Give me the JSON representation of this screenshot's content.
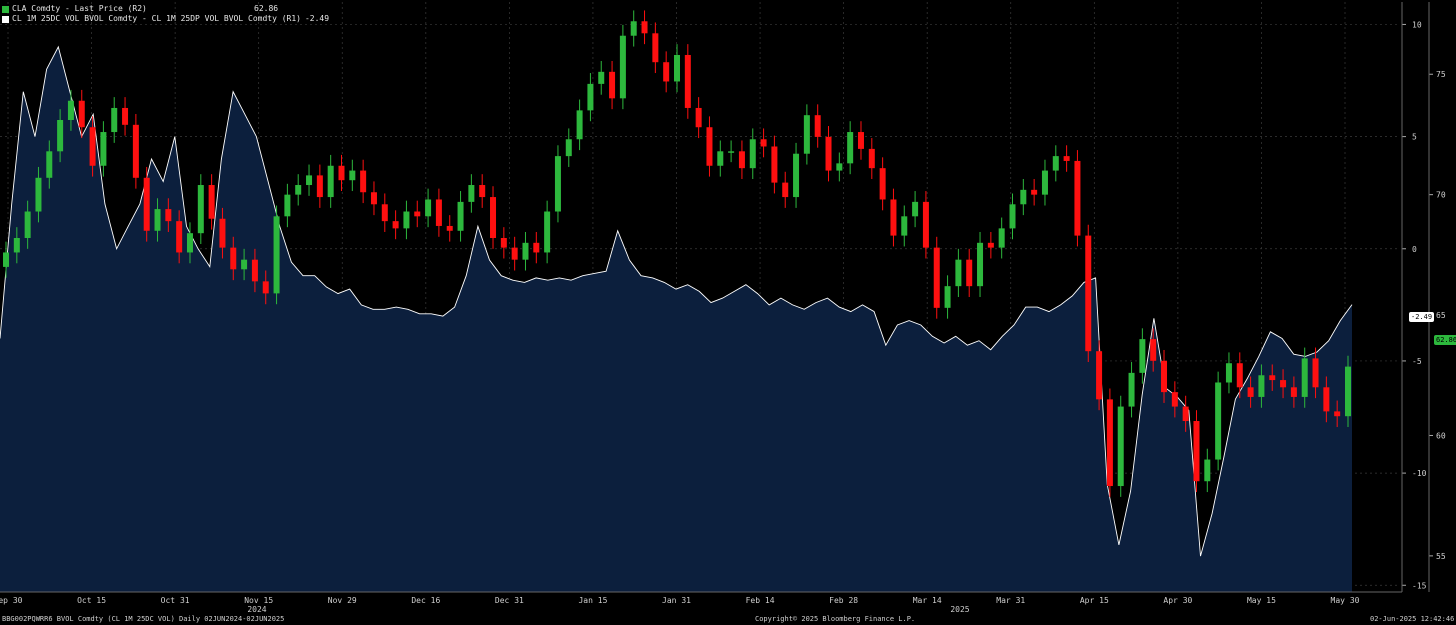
{
  "legend": {
    "items": [
      {
        "label": "CLA Comdty - Last Price (R2)",
        "value": "62.86",
        "color": "#2db83d"
      },
      {
        "label": "CL 1M 25DC VOL BVOL Comdty - CL 1M 25DP VOL BVOL Comdty (R1)",
        "value": "-2.49",
        "color": "#ffffff"
      }
    ]
  },
  "badges": {
    "skew": "-2.49",
    "price": "62.86"
  },
  "footer": {
    "left": "BBG002PQWRR6 BVOL Comdty (CL 1M 25DC VOL)  Daily 02JUN2024-02JUN2025",
    "center": "Copyright© 2025 Bloomberg Finance L.P.",
    "right": "02-Jun-2025 12:42:46"
  },
  "chart_data": {
    "type": "candlestick+area",
    "x_ticks": [
      "Sep 30",
      "Oct 15",
      "Oct 31",
      "Nov 15",
      "Nov 29",
      "Dec 16",
      "Dec 31",
      "Jan 15",
      "Jan 31",
      "Feb 14",
      "Feb 28",
      "Mar 14",
      "Mar 31",
      "Apr 15",
      "Apr 30",
      "May 15",
      "May 30"
    ],
    "year_labels": [
      "2024",
      "2025"
    ],
    "right_axis_r1": {
      "ticks": [
        10,
        5,
        0,
        -5,
        -10,
        -15
      ],
      "range": [
        -15.3,
        11.0
      ]
    },
    "right_axis_r2": {
      "ticks": [
        75,
        70,
        65,
        60,
        55
      ],
      "range": [
        53.5,
        78.0
      ]
    },
    "colors": {
      "up": "#2db83d",
      "down": "#ff1010",
      "area_fill": "#0c1f3d",
      "line": "#ffffff",
      "grid": "#3a3a3a"
    },
    "series": [
      {
        "name": "CL 1M 25DC VOL BVOL Comdty - CL 1M 25DP VOL BVOL Comdty (R1)",
        "axis": "R1",
        "values": [
          -4,
          2,
          7,
          5,
          8,
          9,
          7,
          5,
          6,
          2,
          0,
          1,
          2,
          4,
          3,
          5,
          1,
          0,
          -0.8,
          4,
          7,
          6,
          5,
          3,
          1,
          -0.6,
          -1.2,
          -1.2,
          -1.7,
          -2,
          -1.8,
          -2.5,
          -2.7,
          -2.7,
          -2.6,
          -2.7,
          -2.9,
          -2.9,
          -3,
          -2.6,
          -1.2,
          1,
          -0.5,
          -1.2,
          -1.4,
          -1.5,
          -1.3,
          -1.4,
          -1.3,
          -1.4,
          -1.2,
          -1.1,
          -1,
          0.8,
          -0.5,
          -1.2,
          -1.3,
          -1.5,
          -1.8,
          -1.6,
          -1.9,
          -2.4,
          -2.2,
          -1.9,
          -1.6,
          -2,
          -2.5,
          -2.2,
          -2.5,
          -2.7,
          -2.4,
          -2.2,
          -2.6,
          -2.8,
          -2.5,
          -2.8,
          -4.3,
          -3.4,
          -3.2,
          -3.4,
          -3.9,
          -4.2,
          -3.9,
          -4.3,
          -4.1,
          -4.5,
          -3.9,
          -3.4,
          -2.6,
          -2.6,
          -2.8,
          -2.5,
          -2.1,
          -1.5,
          -1.3,
          -10.5,
          -13.2,
          -10.8,
          -6.5,
          -3.1,
          -6.2,
          -6.6,
          -7.2,
          -13.7,
          -11.8,
          -9.3,
          -6.7,
          -5.8,
          -4.8,
          -3.7,
          -4,
          -4.7,
          -4.8,
          -4.6,
          -4.1,
          -3.2,
          -2.49
        ]
      }
    ],
    "ohlc": {
      "axis": "R2",
      "unit": "USD/bbl",
      "close": [
        67.6,
        68.2,
        69.3,
        70.7,
        71.8,
        73.1,
        73.9,
        72.8,
        71.2,
        72.6,
        73.6,
        72.9,
        70.7,
        68.5,
        69.4,
        68.9,
        67.6,
        68.4,
        70.4,
        69.0,
        67.8,
        66.9,
        67.3,
        66.4,
        65.9,
        69.1,
        70.0,
        70.4,
        70.8,
        69.9,
        71.2,
        70.6,
        71.0,
        70.1,
        69.6,
        68.9,
        68.6,
        69.3,
        69.1,
        69.8,
        68.7,
        68.5,
        69.7,
        70.4,
        69.9,
        68.2,
        67.8,
        67.3,
        68.0,
        67.6,
        69.3,
        71.6,
        72.3,
        73.5,
        74.6,
        75.1,
        74.0,
        76.6,
        77.2,
        76.7,
        75.5,
        74.7,
        75.8,
        73.6,
        72.8,
        71.2,
        71.8,
        71.8,
        71.1,
        72.3,
        72.0,
        70.5,
        69.9,
        71.7,
        73.3,
        72.4,
        71.0,
        71.3,
        72.6,
        71.9,
        71.1,
        69.8,
        68.3,
        69.1,
        69.7,
        67.8,
        65.3,
        66.2,
        67.3,
        66.2,
        68.0,
        67.8,
        68.6,
        69.6,
        70.2,
        70.0,
        71.0,
        71.6,
        71.4,
        68.3,
        63.5,
        61.5,
        57.9,
        61.2,
        62.6,
        64.0,
        63.1,
        61.8,
        61.2,
        60.6,
        58.1,
        59.0,
        62.2,
        63.0,
        62.0,
        61.6,
        62.5,
        62.3,
        62.0,
        61.6,
        63.2,
        62.0,
        61.0,
        60.8,
        62.86
      ],
      "note": "daily candles, sampled ~every 2nd session"
    }
  }
}
